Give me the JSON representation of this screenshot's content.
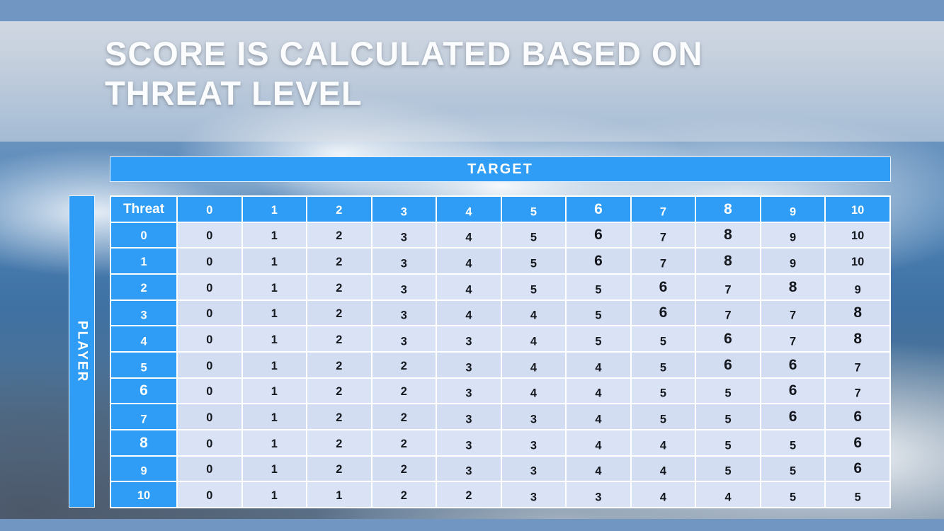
{
  "slide": {
    "title_line1": "SCORE IS CALCULATED BASED ON",
    "title_line2": "THREAT LEVEL"
  },
  "matrix": {
    "target_label": "TARGET",
    "player_label": "PLAYER",
    "corner_label": "Threat",
    "column_headers": [
      "0",
      "1",
      "2",
      "3",
      "4",
      "5",
      "6",
      "7",
      "8",
      "9",
      "10"
    ],
    "rows": [
      {
        "header": "0",
        "values": [
          "0",
          "1",
          "2",
          "3",
          "4",
          "5",
          "6",
          "7",
          "8",
          "9",
          "10"
        ]
      },
      {
        "header": "1",
        "values": [
          "0",
          "1",
          "2",
          "3",
          "4",
          "5",
          "6",
          "7",
          "8",
          "9",
          "10"
        ]
      },
      {
        "header": "2",
        "values": [
          "0",
          "1",
          "2",
          "3",
          "4",
          "5",
          "5",
          "6",
          "7",
          "8",
          "9"
        ]
      },
      {
        "header": "3",
        "values": [
          "0",
          "1",
          "2",
          "3",
          "4",
          "4",
          "5",
          "6",
          "7",
          "7",
          "8"
        ]
      },
      {
        "header": "4",
        "values": [
          "0",
          "1",
          "2",
          "3",
          "3",
          "4",
          "5",
          "5",
          "6",
          "7",
          "8"
        ]
      },
      {
        "header": "5",
        "values": [
          "0",
          "1",
          "2",
          "2",
          "3",
          "4",
          "4",
          "5",
          "6",
          "6",
          "7"
        ]
      },
      {
        "header": "6",
        "values": [
          "0",
          "1",
          "2",
          "2",
          "3",
          "4",
          "4",
          "5",
          "5",
          "6",
          "7"
        ]
      },
      {
        "header": "7",
        "values": [
          "0",
          "1",
          "2",
          "2",
          "3",
          "3",
          "4",
          "5",
          "5",
          "6",
          "6"
        ]
      },
      {
        "header": "8",
        "values": [
          "0",
          "1",
          "2",
          "2",
          "3",
          "3",
          "4",
          "4",
          "5",
          "5",
          "6"
        ]
      },
      {
        "header": "9",
        "values": [
          "0",
          "1",
          "2",
          "2",
          "3",
          "3",
          "4",
          "4",
          "5",
          "5",
          "6"
        ]
      },
      {
        "header": "10",
        "values": [
          "0",
          "1",
          "1",
          "2",
          "2",
          "3",
          "3",
          "4",
          "4",
          "5",
          "5"
        ]
      }
    ]
  },
  "colors": {
    "accent_bar": "#7196c2",
    "header_blue": "#2f9df5",
    "cell_a": "#dae3f5",
    "cell_b": "#d3ddf1",
    "cell_text": "#14171d",
    "title_text": "#fbfcfd"
  }
}
